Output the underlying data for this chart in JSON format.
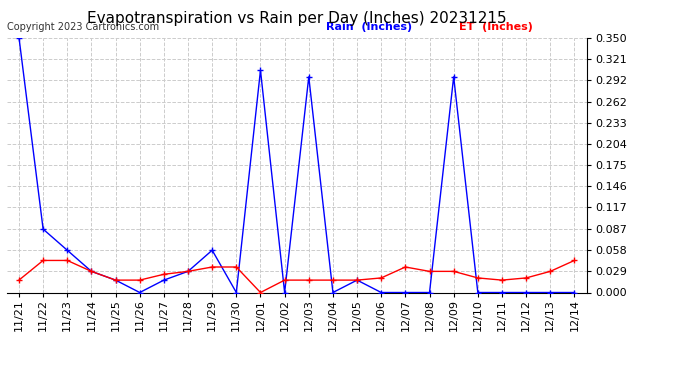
{
  "title": "Evapotranspiration vs Rain per Day (Inches) 20231215",
  "copyright": "Copyright 2023 Cartronics.com",
  "x_labels": [
    "11/21",
    "11/22",
    "11/23",
    "11/24",
    "11/25",
    "11/26",
    "11/27",
    "11/28",
    "11/29",
    "11/30",
    "12/01",
    "12/02",
    "12/03",
    "12/04",
    "12/05",
    "12/06",
    "12/07",
    "12/08",
    "12/09",
    "12/10",
    "12/11",
    "12/12",
    "12/13",
    "12/14"
  ],
  "rain_values": [
    0.35,
    0.087,
    0.058,
    0.029,
    0.017,
    0.0,
    0.017,
    0.029,
    0.058,
    0.0,
    0.305,
    0.0,
    0.296,
    0.0,
    0.017,
    0.0,
    0.0,
    0.0,
    0.296,
    0.0,
    0.0,
    0.0,
    0.0,
    0.0
  ],
  "et_values": [
    0.017,
    0.044,
    0.044,
    0.029,
    0.017,
    0.017,
    0.025,
    0.029,
    0.035,
    0.035,
    0.0,
    0.017,
    0.017,
    0.017,
    0.017,
    0.02,
    0.035,
    0.029,
    0.029,
    0.02,
    0.017,
    0.02,
    0.029,
    0.044
  ],
  "rain_color": "#0000ff",
  "et_color": "#ff0000",
  "rain_label": "Rain  (Inches)",
  "et_label": "ET  (Inches)",
  "ylim": [
    0.0,
    0.35
  ],
  "yticks": [
    0.0,
    0.029,
    0.058,
    0.087,
    0.117,
    0.146,
    0.175,
    0.204,
    0.233,
    0.262,
    0.292,
    0.321,
    0.35
  ],
  "bg_color": "#ffffff",
  "grid_color": "#cccccc",
  "title_fontsize": 11,
  "label_fontsize": 8,
  "tick_fontsize": 8,
  "copyright_fontsize": 7
}
